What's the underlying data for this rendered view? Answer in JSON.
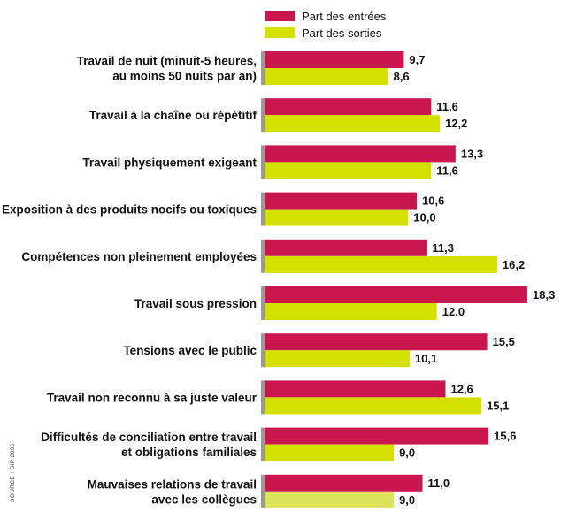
{
  "chart_data": {
    "type": "bar",
    "orientation": "horizontal",
    "categories": [
      [
        "Travail de nuit (minuit-5 heures,",
        "au moins 50 nuits par an)"
      ],
      [
        "Travail à la chaîne ou répétitif"
      ],
      [
        "Travail physiquement exigeant"
      ],
      [
        "Exposition à des produits nocifs ou toxiques"
      ],
      [
        "Compétences non pleinement employées"
      ],
      [
        "Travail sous pression"
      ],
      [
        "Tensions avec le public"
      ],
      [
        "Travail non reconnu à sa juste valeur"
      ],
      [
        "Difficultés de conciliation entre travail",
        "et obligations familiales"
      ],
      [
        "Mauvaises relations de travail",
        "avec les collègues"
      ]
    ],
    "series": [
      {
        "name": "Part des entrées",
        "color": "#c8174f",
        "values": [
          9.7,
          11.6,
          13.3,
          10.6,
          11.3,
          18.3,
          15.5,
          12.6,
          15.6,
          11.0
        ],
        "labels": [
          "9,7",
          "11,6",
          "13,3",
          "10,6",
          "11,3",
          "18,3",
          "15,5",
          "12,6",
          "15,6",
          "11,0"
        ]
      },
      {
        "name": "Part des sorties",
        "color": "#d4e000",
        "values": [
          8.6,
          12.2,
          11.6,
          10.0,
          16.2,
          12.0,
          10.1,
          15.1,
          9.0,
          9.0
        ],
        "labels": [
          "8,6",
          "12,2",
          "11,6",
          "10,0",
          "16,2",
          "12,0",
          "10,1",
          "15,1",
          "9,0",
          "9,0"
        ]
      }
    ],
    "xlim": [
      0,
      18.3
    ],
    "grid": false,
    "legend_position": "top",
    "axis_color": "#999999",
    "source": "SOURCE : SIP 2006"
  }
}
